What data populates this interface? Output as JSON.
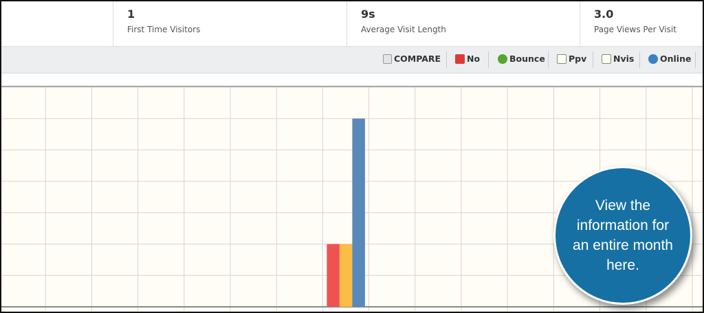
{
  "stats": [
    {
      "value": "1",
      "label": "First Time Visitors"
    },
    {
      "value": "9s",
      "label": "Average Visit Length"
    },
    {
      "value": "3.0",
      "label": "Page Views Per Visit"
    }
  ],
  "toolbar": [
    "COMPARE",
    "No",
    "Bounce",
    "Ppv",
    "Nvis",
    "Online"
  ],
  "chart_data": {
    "type": "bar",
    "categories": [
      null,
      null,
      null,
      null,
      null,
      null,
      null,
      null,
      null,
      null,
      null,
      null,
      null,
      null,
      null
    ],
    "series": [
      {
        "color": "#f05252",
        "values": [
          null,
          null,
          null,
          null,
          null,
          null,
          null,
          2,
          null,
          null,
          null,
          null,
          null,
          null,
          null
        ]
      },
      {
        "color": "#fbbd43",
        "values": [
          null,
          null,
          null,
          null,
          null,
          null,
          null,
          2,
          null,
          null,
          null,
          null,
          null,
          null,
          null
        ]
      },
      {
        "color": "#5b88bb",
        "values": [
          null,
          null,
          null,
          null,
          null,
          null,
          null,
          6,
          null,
          null,
          null,
          null,
          null,
          null,
          null
        ]
      }
    ],
    "ylim": [
      0,
      7
    ],
    "yticks": [
      0,
      1,
      2,
      3,
      4,
      5,
      6,
      7
    ],
    "grid": true
  },
  "callout": [
    "View the",
    "information for",
    "an entire month",
    "here."
  ]
}
